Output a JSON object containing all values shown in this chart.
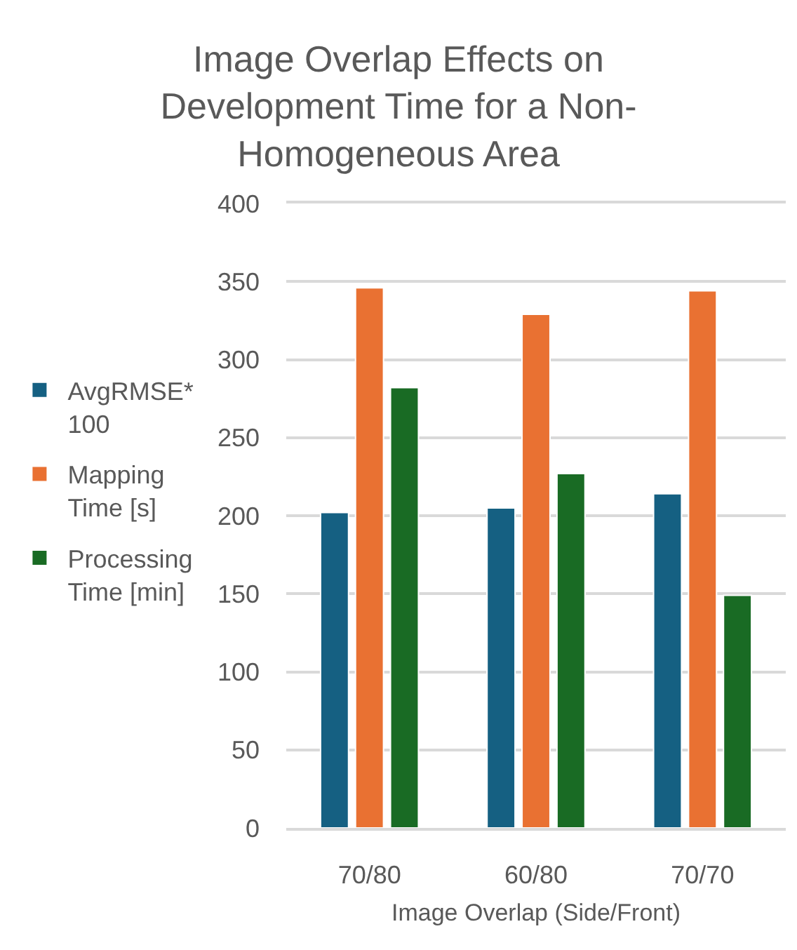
{
  "chart_data": {
    "type": "bar",
    "title": "Image Overlap Effects on Development Time for a Non-Homogeneous Area",
    "xlabel": "Image Overlap (Side/Front)",
    "categories": [
      "70/80",
      "60/80",
      "70/70"
    ],
    "series": [
      {
        "name": "AvgRMSE* 100",
        "color": "#156082",
        "values": [
          202,
          205,
          214
        ]
      },
      {
        "name": "Mapping Time [s]",
        "color": "#e97132",
        "values": [
          346,
          329,
          344
        ]
      },
      {
        "name": "Processing Time [min]",
        "color": "#196b24",
        "values": [
          282,
          227,
          149
        ]
      }
    ],
    "ylim": [
      0,
      400
    ],
    "yticks": [
      0,
      50,
      100,
      150,
      200,
      250,
      300,
      350,
      400
    ],
    "grid": "y",
    "legend": "left"
  }
}
